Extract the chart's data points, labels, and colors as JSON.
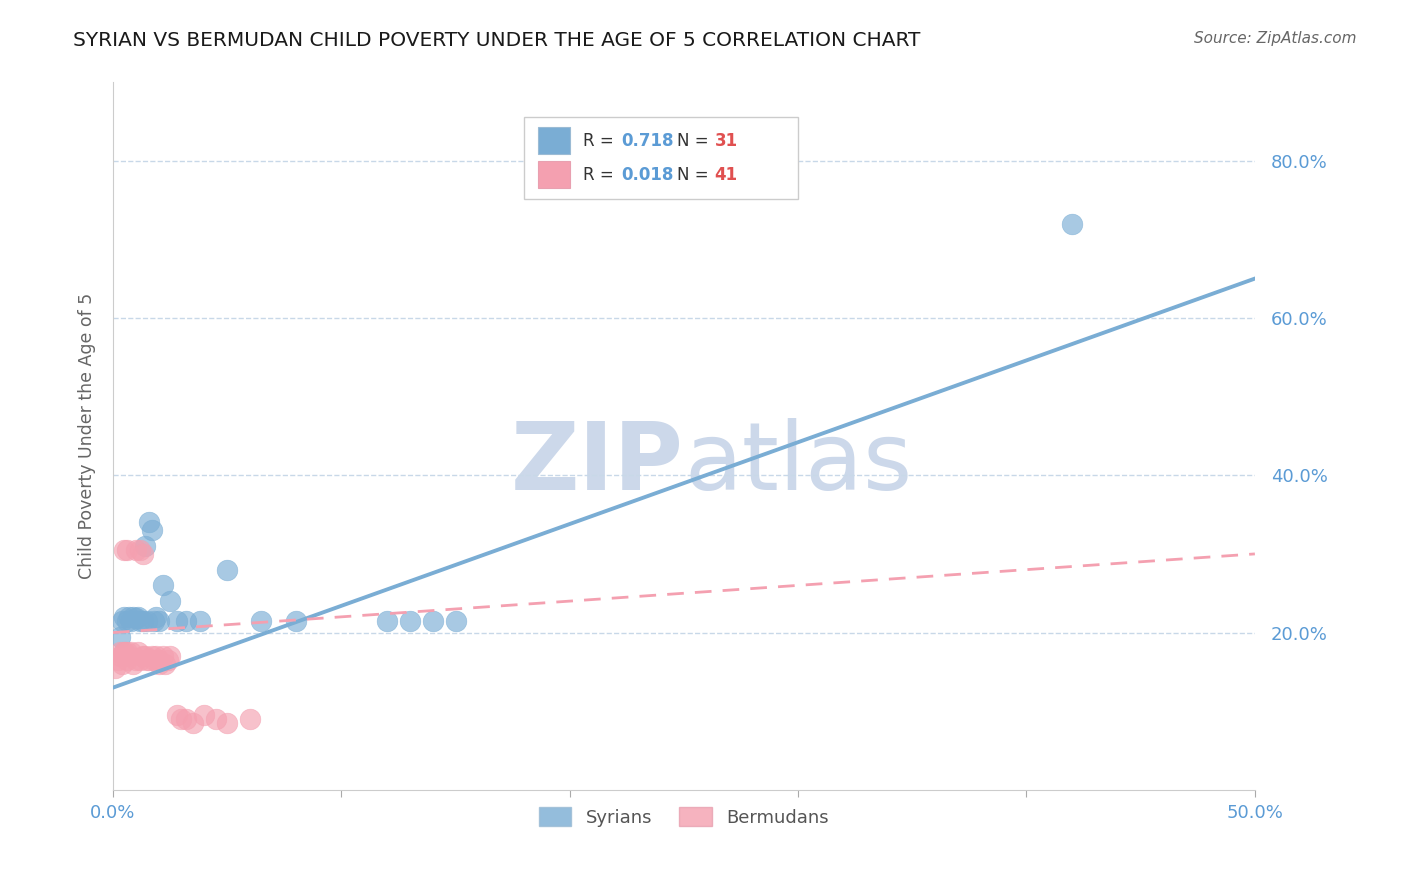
{
  "title": "SYRIAN VS BERMUDAN CHILD POVERTY UNDER THE AGE OF 5 CORRELATION CHART",
  "source": "Source: ZipAtlas.com",
  "ylabel": "Child Poverty Under the Age of 5",
  "xlim": [
    0.0,
    0.5
  ],
  "ylim": [
    0.0,
    0.9
  ],
  "xtick_positions": [
    0.0,
    0.1,
    0.2,
    0.3,
    0.4,
    0.5
  ],
  "xtick_labels_show": [
    "0.0%",
    "",
    "",
    "",
    "",
    "50.0%"
  ],
  "ytick_positions": [
    0.2,
    0.4,
    0.6,
    0.8
  ],
  "ytick_labels": [
    "20.0%",
    "40.0%",
    "60.0%",
    "80.0%"
  ],
  "grid_color": "#c8d8e8",
  "background_color": "#ffffff",
  "syrians_color": "#7aadd4",
  "bermudans_color": "#f4a0b0",
  "syrians_R": 0.718,
  "syrians_N": 31,
  "bermudans_R": 0.018,
  "bermudans_N": 41,
  "syrians_x": [
    0.003,
    0.004,
    0.005,
    0.006,
    0.007,
    0.008,
    0.009,
    0.01,
    0.011,
    0.012,
    0.013,
    0.014,
    0.015,
    0.016,
    0.017,
    0.018,
    0.019,
    0.02,
    0.022,
    0.025,
    0.028,
    0.032,
    0.038,
    0.05,
    0.065,
    0.08,
    0.12,
    0.13,
    0.14,
    0.15,
    0.42
  ],
  "syrians_y": [
    0.195,
    0.215,
    0.22,
    0.215,
    0.22,
    0.215,
    0.22,
    0.218,
    0.22,
    0.215,
    0.215,
    0.31,
    0.215,
    0.34,
    0.33,
    0.215,
    0.22,
    0.215,
    0.26,
    0.24,
    0.215,
    0.215,
    0.215,
    0.28,
    0.215,
    0.215,
    0.215,
    0.215,
    0.215,
    0.215,
    0.72
  ],
  "bermudans_x": [
    0.001,
    0.002,
    0.003,
    0.003,
    0.004,
    0.005,
    0.005,
    0.005,
    0.006,
    0.006,
    0.006,
    0.007,
    0.008,
    0.009,
    0.01,
    0.01,
    0.011,
    0.012,
    0.012,
    0.013,
    0.013,
    0.014,
    0.015,
    0.016,
    0.017,
    0.018,
    0.019,
    0.02,
    0.02,
    0.022,
    0.023,
    0.024,
    0.025,
    0.028,
    0.03,
    0.032,
    0.035,
    0.04,
    0.045,
    0.05,
    0.06
  ],
  "bermudans_y": [
    0.155,
    0.165,
    0.17,
    0.175,
    0.16,
    0.175,
    0.175,
    0.305,
    0.165,
    0.175,
    0.305,
    0.17,
    0.175,
    0.16,
    0.165,
    0.305,
    0.175,
    0.165,
    0.305,
    0.17,
    0.3,
    0.17,
    0.165,
    0.165,
    0.17,
    0.165,
    0.17,
    0.16,
    0.165,
    0.17,
    0.16,
    0.165,
    0.17,
    0.095,
    0.09,
    0.09,
    0.085,
    0.095,
    0.09,
    0.085,
    0.09
  ],
  "syrians_line_x": [
    0.0,
    0.5
  ],
  "syrians_line_y": [
    0.13,
    0.65
  ],
  "bermudans_line_x": [
    0.0,
    0.5
  ],
  "bermudans_line_y": [
    0.2,
    0.3
  ],
  "title_color": "#1a1a1a",
  "tick_color": "#5b9bd5",
  "legend_r_color": "#5b9bd5",
  "legend_n_color": "#e05050",
  "watermark_color": "#ccd8ea"
}
